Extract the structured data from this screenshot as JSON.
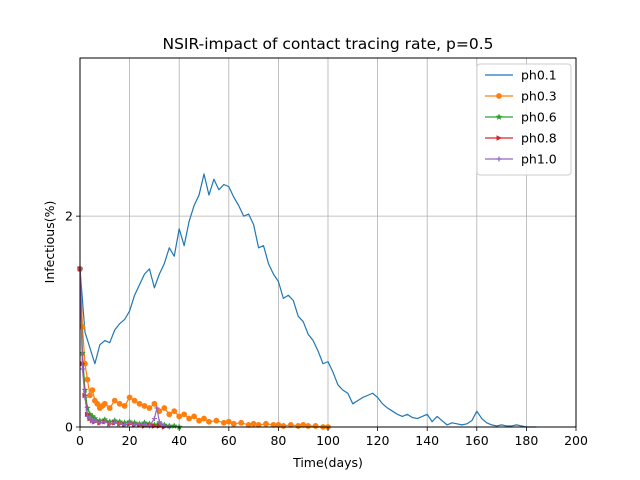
{
  "chart_data": {
    "type": "line",
    "title": "NSIR-impact of contact tracing rate, p=0.5",
    "xlabel": "Time(days)",
    "ylabel": "Infectious(%)",
    "xlim": [
      0,
      200
    ],
    "ylim": [
      0,
      3.5
    ],
    "x_ticks": [
      0,
      20,
      40,
      60,
      80,
      100,
      120,
      140,
      160,
      180,
      200
    ],
    "y_ticks": [
      0,
      2
    ],
    "grid": true,
    "legend_position": "top-right",
    "series": [
      {
        "name": "ph0.1",
        "color": "#1f77b4",
        "marker": "none",
        "x": [
          0,
          2,
          4,
          6,
          8,
          10,
          12,
          14,
          16,
          18,
          20,
          22,
          24,
          26,
          28,
          30,
          32,
          34,
          36,
          38,
          40,
          42,
          44,
          46,
          48,
          50,
          52,
          54,
          56,
          58,
          60,
          62,
          64,
          66,
          68,
          70,
          72,
          74,
          76,
          78,
          80,
          82,
          84,
          86,
          88,
          90,
          92,
          94,
          96,
          98,
          100,
          102,
          104,
          106,
          108,
          110,
          112,
          114,
          116,
          118,
          120,
          122,
          124,
          126,
          128,
          130,
          132,
          134,
          136,
          138,
          140,
          142,
          144,
          146,
          148,
          150,
          152,
          154,
          156,
          158,
          160,
          162,
          164,
          166,
          168,
          170,
          172,
          174,
          176,
          178,
          180,
          182,
          184
        ],
        "y": [
          1.5,
          0.9,
          0.75,
          0.6,
          0.78,
          0.82,
          0.8,
          0.92,
          0.98,
          1.02,
          1.1,
          1.25,
          1.35,
          1.45,
          1.5,
          1.32,
          1.45,
          1.55,
          1.7,
          1.62,
          1.88,
          1.72,
          1.95,
          2.1,
          2.2,
          2.4,
          2.2,
          2.35,
          2.25,
          2.3,
          2.28,
          2.18,
          2.1,
          2.0,
          2.02,
          1.92,
          1.7,
          1.72,
          1.55,
          1.45,
          1.38,
          1.22,
          1.25,
          1.2,
          1.05,
          1.0,
          0.88,
          0.82,
          0.72,
          0.6,
          0.62,
          0.52,
          0.4,
          0.35,
          0.32,
          0.22,
          0.25,
          0.28,
          0.3,
          0.32,
          0.28,
          0.22,
          0.18,
          0.15,
          0.12,
          0.1,
          0.12,
          0.09,
          0.08,
          0.1,
          0.12,
          0.05,
          0.1,
          0.06,
          0.02,
          0.04,
          0.03,
          0.02,
          0.03,
          0.06,
          0.15,
          0.08,
          0.04,
          0.02,
          0.01,
          0.02,
          0.01,
          0.01,
          0.02,
          0.01,
          0.0,
          0.0,
          0.0
        ]
      },
      {
        "name": "ph0.3",
        "color": "#ff7f0e",
        "marker": "circle",
        "x": [
          0,
          1,
          2,
          3,
          4,
          5,
          6,
          7,
          8,
          9,
          10,
          12,
          14,
          16,
          18,
          20,
          22,
          24,
          26,
          28,
          30,
          32,
          34,
          36,
          38,
          40,
          42,
          44,
          46,
          48,
          50,
          52,
          55,
          58,
          60,
          62,
          65,
          68,
          70,
          72,
          75,
          78,
          80,
          82,
          85,
          88,
          90,
          92,
          95,
          98,
          100
        ],
        "y": [
          1.5,
          0.95,
          0.6,
          0.45,
          0.3,
          0.35,
          0.25,
          0.22,
          0.18,
          0.2,
          0.22,
          0.18,
          0.25,
          0.22,
          0.2,
          0.28,
          0.25,
          0.22,
          0.2,
          0.18,
          0.22,
          0.15,
          0.18,
          0.12,
          0.15,
          0.1,
          0.12,
          0.08,
          0.1,
          0.06,
          0.08,
          0.05,
          0.06,
          0.04,
          0.05,
          0.03,
          0.04,
          0.02,
          0.03,
          0.02,
          0.03,
          0.02,
          0.02,
          0.01,
          0.02,
          0.01,
          0.02,
          0.01,
          0.01,
          0.0,
          0.0
        ]
      },
      {
        "name": "ph0.6",
        "color": "#2ca02c",
        "marker": "star",
        "x": [
          0,
          1,
          2,
          3,
          4,
          5,
          6,
          8,
          10,
          12,
          14,
          16,
          18,
          20,
          22,
          24,
          26,
          28,
          30,
          32,
          34,
          36,
          38,
          40
        ],
        "y": [
          1.5,
          0.7,
          0.35,
          0.18,
          0.12,
          0.1,
          0.08,
          0.06,
          0.07,
          0.05,
          0.06,
          0.05,
          0.04,
          0.05,
          0.04,
          0.03,
          0.04,
          0.03,
          0.02,
          0.03,
          0.02,
          0.01,
          0.01,
          0.0
        ]
      },
      {
        "name": "ph0.8",
        "color": "#d62728",
        "marker": "triangle-right",
        "x": [
          0,
          1,
          2,
          3,
          4,
          5,
          6,
          8,
          10,
          12,
          14,
          16,
          18,
          20,
          22,
          24,
          26,
          28,
          30,
          32,
          34
        ],
        "y": [
          1.5,
          0.6,
          0.3,
          0.12,
          0.08,
          0.06,
          0.05,
          0.04,
          0.05,
          0.03,
          0.04,
          0.03,
          0.02,
          0.03,
          0.02,
          0.02,
          0.01,
          0.02,
          0.01,
          0.01,
          0.0
        ]
      },
      {
        "name": "ph1.0",
        "color": "#9467bd",
        "marker": "plus",
        "x": [
          0,
          1,
          2,
          3,
          4,
          5,
          6,
          8,
          10,
          12,
          14,
          16,
          18,
          20,
          22,
          24,
          26,
          28,
          30,
          31,
          32,
          33,
          34,
          36
        ],
        "y": [
          1.5,
          0.55,
          0.28,
          0.1,
          0.08,
          0.05,
          0.06,
          0.04,
          0.05,
          0.03,
          0.04,
          0.03,
          0.02,
          0.04,
          0.02,
          0.03,
          0.02,
          0.01,
          0.08,
          0.18,
          0.05,
          0.02,
          0.01,
          0.0
        ]
      }
    ]
  }
}
